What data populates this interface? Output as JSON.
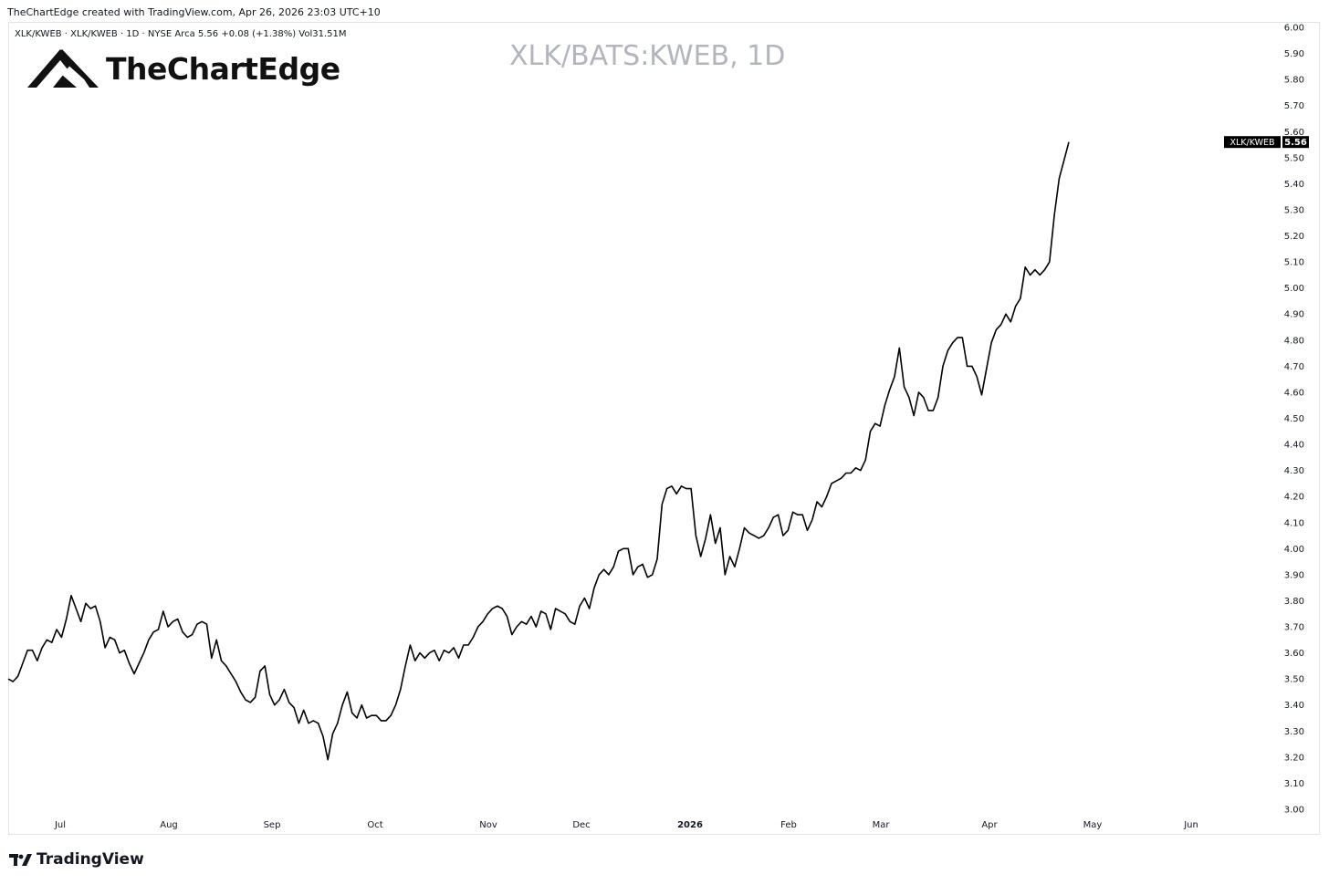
{
  "header": {
    "caption": "TheChartEdge created with TradingView.com, Apr 26, 2026 23:03 UTC+10",
    "symbol_line": "XLK/KWEB · XLK/KWEB · 1D · NYSE Arca  5.56  +0.08 (+1.38%)  Vol31.51M",
    "watermark": "XLK/BATS:KWEB, 1D",
    "brand_name": "TheChartEdge"
  },
  "footer": {
    "brand": "TradingView"
  },
  "colors": {
    "line": "#000000",
    "axis_text": "#131722",
    "watermark": "#b2b5be",
    "badge_bg": "#000000"
  },
  "chart_data": {
    "type": "line",
    "series": [
      {
        "name": "XLK/KWEB",
        "last_value_label": "5.56",
        "values": [
          3.5,
          3.49,
          3.51,
          3.56,
          3.61,
          3.61,
          3.57,
          3.62,
          3.65,
          3.64,
          3.69,
          3.66,
          3.73,
          3.82,
          3.77,
          3.72,
          3.79,
          3.77,
          3.78,
          3.72,
          3.62,
          3.66,
          3.65,
          3.6,
          3.61,
          3.56,
          3.52,
          3.56,
          3.6,
          3.65,
          3.68,
          3.69,
          3.76,
          3.7,
          3.72,
          3.73,
          3.68,
          3.66,
          3.67,
          3.71,
          3.72,
          3.71,
          3.58,
          3.65,
          3.57,
          3.55,
          3.52,
          3.49,
          3.45,
          3.42,
          3.41,
          3.43,
          3.53,
          3.55,
          3.44,
          3.4,
          3.42,
          3.46,
          3.41,
          3.39,
          3.33,
          3.38,
          3.33,
          3.34,
          3.33,
          3.28,
          3.19,
          3.29,
          3.33,
          3.4,
          3.45,
          3.37,
          3.35,
          3.4,
          3.35,
          3.36,
          3.36,
          3.34,
          3.34,
          3.36,
          3.4,
          3.46,
          3.55,
          3.63,
          3.57,
          3.6,
          3.58,
          3.6,
          3.61,
          3.57,
          3.61,
          3.6,
          3.62,
          3.58,
          3.63,
          3.63,
          3.66,
          3.7,
          3.72,
          3.75,
          3.77,
          3.78,
          3.77,
          3.74,
          3.67,
          3.7,
          3.72,
          3.71,
          3.74,
          3.7,
          3.76,
          3.75,
          3.69,
          3.77,
          3.76,
          3.75,
          3.72,
          3.71,
          3.78,
          3.81,
          3.77,
          3.85,
          3.9,
          3.92,
          3.9,
          3.93,
          3.99,
          4.0,
          4.0,
          3.9,
          3.93,
          3.94,
          3.89,
          3.9,
          3.96,
          4.17,
          4.23,
          4.24,
          4.21,
          4.24,
          4.23,
          4.23,
          4.05,
          3.97,
          4.04,
          4.13,
          4.02,
          4.08,
          3.9,
          3.97,
          3.93,
          4.0,
          4.08,
          4.06,
          4.05,
          4.04,
          4.05,
          4.08,
          4.12,
          4.13,
          4.05,
          4.07,
          4.14,
          4.13,
          4.13,
          4.07,
          4.11,
          4.18,
          4.16,
          4.2,
          4.25,
          4.26,
          4.27,
          4.29,
          4.29,
          4.31,
          4.3,
          4.34,
          4.45,
          4.48,
          4.47,
          4.55,
          4.61,
          4.66,
          4.77,
          4.62,
          4.58,
          4.51,
          4.6,
          4.58,
          4.53,
          4.53,
          4.58,
          4.7,
          4.76,
          4.79,
          4.81,
          4.81,
          4.7,
          4.7,
          4.66,
          4.59,
          4.69,
          4.79,
          4.84,
          4.86,
          4.9,
          4.87,
          4.93,
          4.96,
          5.08,
          5.05,
          5.07,
          5.05,
          5.07,
          5.1,
          5.28,
          5.42,
          5.49,
          5.56
        ]
      }
    ],
    "x_ticks": [
      "Jul",
      "Aug",
      "Sep",
      "Oct",
      "Nov",
      "Dec",
      "2026",
      "Feb",
      "Mar",
      "Apr",
      "May",
      "Jun"
    ],
    "x_bold_tick": "2026",
    "y_ticks": [
      "3.00",
      "3.10",
      "3.20",
      "3.30",
      "3.40",
      "3.50",
      "3.60",
      "3.70",
      "3.80",
      "3.90",
      "4.00",
      "4.10",
      "4.20",
      "4.30",
      "4.40",
      "4.50",
      "4.60",
      "4.70",
      "4.80",
      "4.90",
      "5.00",
      "5.10",
      "5.20",
      "5.30",
      "5.40",
      "5.50",
      "5.60",
      "5.70",
      "5.80",
      "5.90",
      "6.00"
    ],
    "ylim": [
      3.0,
      6.0
    ],
    "grid": false,
    "title": "XLK/BATS:KWEB, 1D"
  }
}
